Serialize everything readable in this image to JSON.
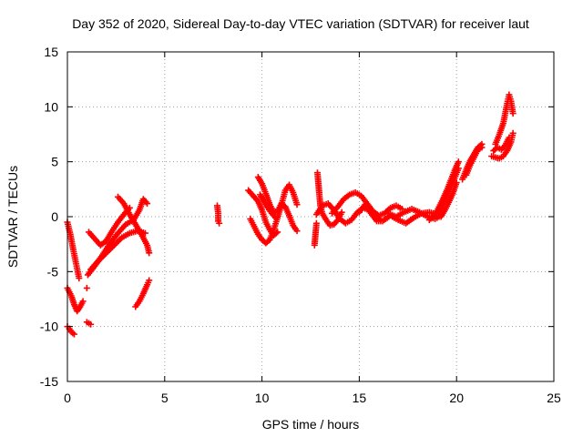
{
  "chart_data": {
    "type": "scatter",
    "title": "Day 352 of 2020, Sidereal Day-to-day VTEC variation (SDTVAR) for receiver laut",
    "xlabel": "GPS time / hours",
    "ylabel": "SDTVAR / TECUs",
    "xlim": [
      0,
      25
    ],
    "ylim": [
      -15,
      15
    ],
    "xticks": [
      "0",
      "5",
      "10",
      "15",
      "20",
      "25"
    ],
    "yticks": [
      "-15",
      "-10",
      "-5",
      "0",
      "5",
      "10",
      "15"
    ],
    "grid": true,
    "marker": "plus",
    "series": [
      {
        "name": "SDTVAR",
        "color": "#ff0000",
        "tracks": [
          [
            [
              0.0,
              -0.5
            ],
            [
              0.15,
              -1.6
            ],
            [
              0.3,
              -3.0
            ],
            [
              0.45,
              -4.3
            ],
            [
              0.6,
              -5.6
            ]
          ],
          [
            [
              0.0,
              -6.5
            ],
            [
              0.2,
              -7.2
            ],
            [
              0.35,
              -8.0
            ],
            [
              0.5,
              -8.6
            ],
            [
              0.65,
              -8.2
            ],
            [
              0.8,
              -7.7
            ]
          ],
          [
            [
              0.0,
              -10.0
            ],
            [
              0.1,
              -10.2
            ],
            [
              0.2,
              -10.5
            ],
            [
              0.35,
              -10.7
            ]
          ],
          [
            [
              1.0,
              -9.6
            ],
            [
              1.2,
              -9.8
            ]
          ],
          [
            [
              1.0,
              -6.5
            ]
          ],
          [
            [
              1.05,
              -5.3
            ],
            [
              1.4,
              -4.5
            ],
            [
              1.8,
              -3.5
            ],
            [
              2.2,
              -2.4
            ],
            [
              2.6,
              -1.5
            ],
            [
              3.0,
              -0.7
            ],
            [
              3.4,
              -0.3
            ],
            [
              3.7,
              0.6
            ],
            [
              3.9,
              1.6
            ],
            [
              4.1,
              1.2
            ]
          ],
          [
            [
              1.1,
              -1.4
            ],
            [
              1.4,
              -2.0
            ],
            [
              1.7,
              -2.6
            ],
            [
              2.0,
              -2.2
            ],
            [
              2.3,
              -1.3
            ],
            [
              2.6,
              -0.5
            ],
            [
              2.9,
              0.2
            ],
            [
              3.2,
              0.8
            ]
          ],
          [
            [
              1.2,
              -4.8
            ],
            [
              1.6,
              -4.0
            ],
            [
              2.0,
              -3.3
            ],
            [
              2.4,
              -2.6
            ],
            [
              2.8,
              -1.9
            ],
            [
              3.2,
              -1.5
            ],
            [
              3.6,
              -1.3
            ],
            [
              4.0,
              -1.5
            ]
          ],
          [
            [
              2.6,
              1.8
            ],
            [
              2.9,
              1.2
            ],
            [
              3.2,
              0.2
            ],
            [
              3.5,
              -0.7
            ],
            [
              3.8,
              -1.6
            ],
            [
              4.1,
              -2.6
            ],
            [
              4.2,
              -3.3
            ]
          ],
          [
            [
              3.5,
              -8.2
            ],
            [
              3.7,
              -7.7
            ],
            [
              3.9,
              -7.0
            ],
            [
              4.1,
              -6.2
            ],
            [
              4.2,
              -5.8
            ]
          ],
          [
            [
              7.7,
              1.0
            ],
            [
              7.75,
              0.3
            ],
            [
              7.75,
              -0.4
            ],
            [
              7.8,
              -0.6
            ]
          ],
          [
            [
              9.3,
              2.4
            ],
            [
              9.5,
              2.0
            ],
            [
              9.8,
              1.4
            ],
            [
              10.0,
              0.6
            ],
            [
              10.2,
              -0.5
            ],
            [
              10.4,
              -1.2
            ],
            [
              10.6,
              -1.7
            ],
            [
              10.8,
              -1.4
            ]
          ],
          [
            [
              9.4,
              -0.2
            ],
            [
              9.6,
              -0.9
            ],
            [
              9.8,
              -1.6
            ],
            [
              10.0,
              -2.1
            ],
            [
              10.2,
              -2.4
            ],
            [
              10.4,
              -2.1
            ],
            [
              10.6,
              -1.2
            ],
            [
              10.8,
              -0.1
            ],
            [
              11.0,
              1.1
            ],
            [
              11.2,
              2.4
            ],
            [
              11.4,
              2.9
            ],
            [
              11.6,
              2.2
            ],
            [
              11.8,
              1.1
            ]
          ],
          [
            [
              9.8,
              3.6
            ],
            [
              10.0,
              3.0
            ],
            [
              10.2,
              2.1
            ],
            [
              10.4,
              1.1
            ],
            [
              10.6,
              0.4
            ],
            [
              10.8,
              0.5
            ],
            [
              11.0,
              1.2
            ],
            [
              11.2,
              0.9
            ],
            [
              11.4,
              0.1
            ],
            [
              11.6,
              -0.8
            ],
            [
              11.8,
              -1.3
            ]
          ],
          [
            [
              9.9,
              2.0
            ],
            [
              10.1,
              1.4
            ],
            [
              10.3,
              0.8
            ],
            [
              10.5,
              0.3
            ],
            [
              10.7,
              -0.1
            ]
          ],
          [
            [
              12.7,
              -2.6
            ],
            [
              12.75,
              -1.6
            ],
            [
              12.8,
              -0.6
            ]
          ],
          [
            [
              12.85,
              4.0
            ],
            [
              12.9,
              3.0
            ],
            [
              12.95,
              2.0
            ],
            [
              13.0,
              1.0
            ],
            [
              13.1,
              0.3
            ],
            [
              13.3,
              -0.3
            ],
            [
              13.5,
              -0.8
            ],
            [
              13.7,
              -0.7
            ],
            [
              13.9,
              -0.3
            ],
            [
              14.1,
              0.4
            ]
          ],
          [
            [
              12.8,
              0.2
            ],
            [
              13.1,
              1.0
            ],
            [
              13.4,
              1.2
            ],
            [
              13.7,
              0.6
            ],
            [
              14.0,
              -0.2
            ],
            [
              14.3,
              -0.6
            ],
            [
              14.6,
              -0.3
            ],
            [
              14.9,
              0.4
            ],
            [
              15.2,
              0.8
            ],
            [
              15.5,
              0.6
            ],
            [
              15.8,
              0.1
            ],
            [
              16.1,
              -0.3
            ]
          ],
          [
            [
              13.6,
              0.3
            ],
            [
              13.9,
              0.9
            ],
            [
              14.2,
              1.6
            ],
            [
              14.5,
              2.0
            ],
            [
              14.8,
              2.2
            ],
            [
              15.1,
              1.9
            ],
            [
              15.4,
              1.2
            ],
            [
              15.7,
              0.5
            ],
            [
              16.0,
              0.1
            ],
            [
              16.3,
              0.3
            ],
            [
              16.6,
              0.8
            ],
            [
              16.9,
              1.0
            ],
            [
              17.2,
              0.7
            ]
          ],
          [
            [
              15.0,
              0.4
            ],
            [
              15.3,
              1.1
            ],
            [
              15.6,
              0.3
            ],
            [
              15.9,
              -0.4
            ],
            [
              16.2,
              -0.4
            ],
            [
              16.6,
              0.1
            ],
            [
              17.0,
              -0.3
            ],
            [
              17.4,
              -0.6
            ],
            [
              17.8,
              -0.1
            ],
            [
              18.2,
              0.3
            ],
            [
              18.6,
              0.4
            ],
            [
              19.0,
              0.2
            ]
          ],
          [
            [
              16.5,
              0.3
            ],
            [
              16.9,
              0.0
            ],
            [
              17.3,
              0.4
            ],
            [
              17.7,
              0.7
            ],
            [
              18.1,
              0.4
            ],
            [
              18.5,
              0.0
            ],
            [
              18.9,
              -0.2
            ],
            [
              19.2,
              0.1
            ]
          ],
          [
            [
              18.6,
              -0.3
            ],
            [
              18.9,
              0.2
            ],
            [
              19.1,
              0.9
            ],
            [
              19.3,
              1.6
            ],
            [
              19.5,
              2.4
            ],
            [
              19.7,
              3.3
            ],
            [
              19.9,
              4.2
            ],
            [
              20.1,
              5.0
            ]
          ],
          [
            [
              18.9,
              -0.1
            ],
            [
              19.1,
              0.5
            ],
            [
              19.3,
              1.1
            ],
            [
              19.5,
              1.9
            ],
            [
              19.7,
              2.6
            ],
            [
              19.9,
              3.5
            ],
            [
              20.1,
              4.4
            ]
          ],
          [
            [
              19.2,
              0.0
            ],
            [
              19.4,
              0.6
            ],
            [
              19.6,
              1.3
            ],
            [
              19.8,
              2.1
            ],
            [
              20.0,
              3.1
            ]
          ],
          [
            [
              20.3,
              3.4
            ],
            [
              20.5,
              4.3
            ],
            [
              20.7,
              5.1
            ],
            [
              20.9,
              5.7
            ],
            [
              21.1,
              6.3
            ],
            [
              21.3,
              6.6
            ]
          ],
          [
            [
              20.5,
              3.8
            ],
            [
              20.7,
              4.7
            ],
            [
              20.9,
              5.4
            ],
            [
              21.1,
              6.1
            ],
            [
              21.3,
              6.3
            ]
          ],
          [
            [
              21.8,
              5.5
            ],
            [
              22.0,
              5.4
            ],
            [
              22.2,
              5.3
            ],
            [
              22.4,
              5.5
            ],
            [
              22.6,
              6.0
            ],
            [
              22.8,
              6.8
            ],
            [
              22.9,
              7.6
            ]
          ],
          [
            [
              21.9,
              6.0
            ],
            [
              22.1,
              6.3
            ],
            [
              22.3,
              6.1
            ],
            [
              22.5,
              6.5
            ],
            [
              22.7,
              7.2
            ]
          ],
          [
            [
              22.0,
              6.6
            ],
            [
              22.2,
              7.5
            ],
            [
              22.4,
              8.5
            ],
            [
              22.5,
              9.4
            ],
            [
              22.6,
              10.3
            ],
            [
              22.7,
              11.1
            ],
            [
              22.8,
              10.5
            ],
            [
              22.9,
              9.4
            ]
          ]
        ]
      }
    ]
  }
}
